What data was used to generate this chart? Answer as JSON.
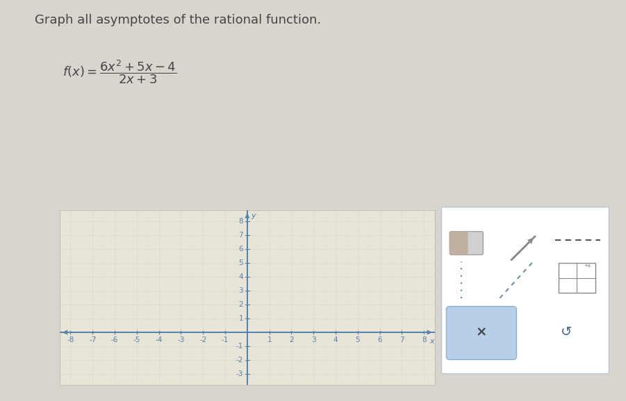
{
  "title": "Graph all asymptotes of the rational function.",
  "xlim": [
    -8.5,
    8.5
  ],
  "ylim": [
    -3.8,
    8.8
  ],
  "xticks": [
    -8,
    -7,
    -6,
    -5,
    -4,
    -3,
    -2,
    -1,
    1,
    2,
    3,
    4,
    5,
    6,
    7,
    8
  ],
  "yticks": [
    -3,
    -2,
    -1,
    1,
    2,
    3,
    4,
    5,
    6,
    7,
    8
  ],
  "grid_color": "#aabfcf",
  "axis_color": "#5580aa",
  "bg_color": "#e8e4d8",
  "page_bg": "#dcdad4",
  "border_color": "#c8c0b0",
  "text_color": "#444444",
  "title_fontsize": 13,
  "tick_fontsize": 7.5,
  "axis_label_fontsize": 9
}
